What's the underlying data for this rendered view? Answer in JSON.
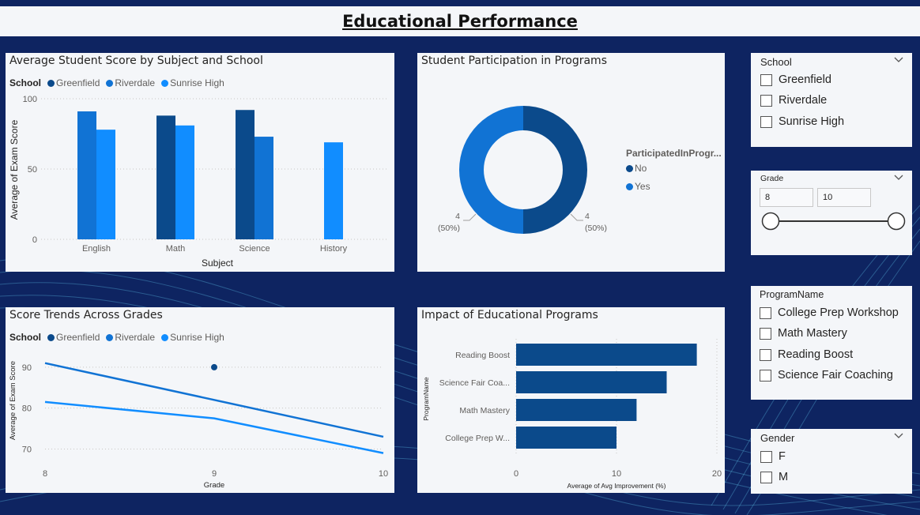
{
  "page_title": "Educational Performance",
  "colors": {
    "greenfield": "#0b4a8b",
    "riverdale": "#1173d4",
    "sunrise_high": "#118dff",
    "card_bg": "#f4f6f9",
    "page_bg": "#0e2461"
  },
  "bar_chart": {
    "title": "Average Student Score by Subject and School",
    "legend_title": "School",
    "legend": [
      "Greenfield",
      "Riverdale",
      "Sunrise High"
    ],
    "ylabel": "Average of Exam Score",
    "xlabel": "Subject",
    "yticks": [
      "100",
      "50",
      "0"
    ]
  },
  "donut_chart": {
    "title": "Student Participation in Programs",
    "legend_title": "ParticipatedInProgr...",
    "legend": [
      "No",
      "Yes"
    ],
    "left_label": "4",
    "left_pct": "(50%)",
    "right_label": "4",
    "right_pct": "(50%)"
  },
  "line_chart": {
    "title": "Score Trends Across Grades",
    "legend_title": "School",
    "legend": [
      "Greenfield",
      "Riverdale",
      "Sunrise High"
    ],
    "ylabel": "Average of Exam Score",
    "xlabel": "Grade",
    "yticks": [
      "90",
      "80",
      "70"
    ],
    "xticks": [
      "8",
      "9",
      "10"
    ]
  },
  "hbar_chart": {
    "title": "Impact of Educational Programs",
    "ylabel": "ProgramName",
    "xlabel": "Average of Avg Improvement (%)",
    "categories": [
      "Reading Boost",
      "Science Fair Coa...",
      "Math Mastery",
      "College Prep W..."
    ],
    "xticks": [
      "0",
      "10",
      "20"
    ]
  },
  "chart_data": [
    {
      "type": "bar",
      "title": "Average Student Score by Subject and School",
      "xlabel": "Subject",
      "ylabel": "Average of Exam Score",
      "categories": [
        "English",
        "Math",
        "Science",
        "History"
      ],
      "ylim": [
        0,
        100
      ],
      "series": [
        {
          "name": "Greenfield",
          "values": [
            null,
            88,
            92,
            null
          ]
        },
        {
          "name": "Riverdale",
          "values": [
            91,
            null,
            73,
            null
          ]
        },
        {
          "name": "Sunrise High",
          "values": [
            78,
            81,
            null,
            69
          ]
        }
      ],
      "legend": "top-left",
      "grid": true
    },
    {
      "type": "pie",
      "title": "Student Participation in Programs",
      "hole": true,
      "categories": [
        "No",
        "Yes"
      ],
      "values": [
        4,
        4
      ],
      "percents": [
        "50%",
        "50%"
      ]
    },
    {
      "type": "line",
      "title": "Score Trends Across Grades",
      "xlabel": "Grade",
      "ylabel": "Average of Exam Score",
      "x": [
        8,
        9,
        10
      ],
      "ylim": [
        67,
        95
      ],
      "series": [
        {
          "name": "Greenfield",
          "values": [
            null,
            90,
            null
          ]
        },
        {
          "name": "Riverdale",
          "values": [
            91,
            82,
            73
          ]
        },
        {
          "name": "Sunrise High",
          "values": [
            81.5,
            77.5,
            69
          ]
        }
      ],
      "legend": "top-left",
      "grid": true
    },
    {
      "type": "bar",
      "orientation": "horizontal",
      "title": "Impact of Educational Programs",
      "xlabel": "Average of Avg Improvement (%)",
      "ylabel": "ProgramName",
      "categories": [
        "Reading Boost",
        "Science Fair Coaching",
        "Math Mastery",
        "College Prep Workshop"
      ],
      "values": [
        18,
        15,
        12,
        10
      ],
      "xlim": [
        0,
        20
      ]
    }
  ],
  "slicers": {
    "school": {
      "title": "School",
      "items": [
        "Greenfield",
        "Riverdale",
        "Sunrise High"
      ]
    },
    "grade": {
      "title": "Grade",
      "min_value": "8",
      "max_value": "10",
      "range_min": 8,
      "range_max": 10,
      "selected_min": 8,
      "selected_max": 10
    },
    "program": {
      "title": "ProgramName",
      "items": [
        "College Prep Workshop",
        "Math Mastery",
        "Reading Boost",
        "Science Fair Coaching"
      ]
    },
    "gender": {
      "title": "Gender",
      "items": [
        "F",
        "M"
      ]
    }
  },
  "icons": {
    "chevron": "chevron-down-icon",
    "checkbox": "checkbox-icon",
    "slider": "range-slider"
  }
}
